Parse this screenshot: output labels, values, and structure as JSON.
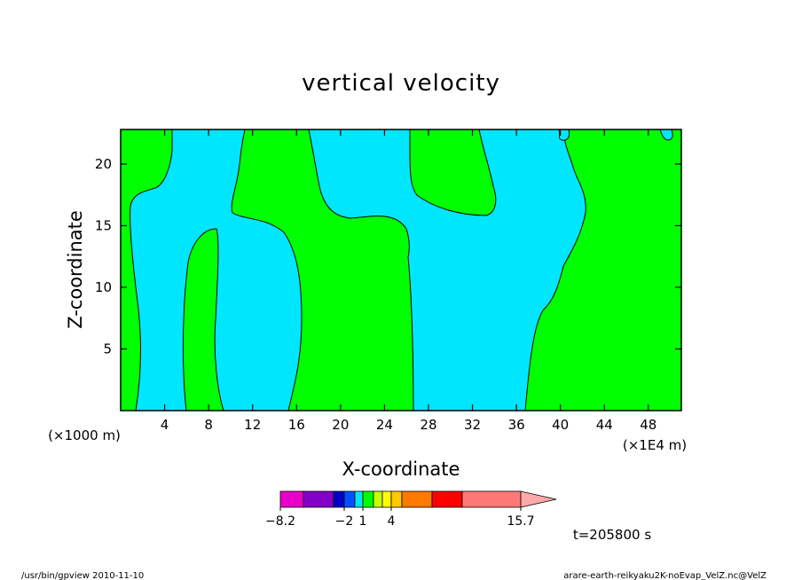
{
  "chart_data": {
    "type": "heatmap",
    "title": "vertical velocity",
    "xlabel": "X-coordinate",
    "ylabel": "Z-coordinate",
    "x_unit_left": "(×1000 m)",
    "x_unit_right": "(×1E4 m)",
    "xlim": [
      0,
      51
    ],
    "ylim": [
      0,
      22.8
    ],
    "x_ticks": [
      4,
      8,
      12,
      16,
      20,
      24,
      28,
      32,
      36,
      40,
      44,
      48
    ],
    "y_ticks": [
      5,
      10,
      15,
      20
    ],
    "regions": [
      {
        "sign": "positive",
        "color": "#00ff00"
      },
      {
        "sign": "negative",
        "color": "#00e6ff"
      }
    ],
    "colorbar": {
      "colors": [
        "#e600c8",
        "#8200c8",
        "#0000c8",
        "#0050ff",
        "#00e6ff",
        "#00ff00",
        "#c8ff00",
        "#ffff00",
        "#ffc800",
        "#ff7800",
        "#ff0000",
        "#ff7878",
        "#ffaaaa"
      ],
      "labels": [
        {
          "text": "−8.2",
          "value": -8.2
        },
        {
          "text": "−2",
          "value": -2
        },
        {
          "text": "1",
          "value": 1
        },
        {
          "text": "4",
          "value": 4
        },
        {
          "text": "15.7",
          "value": 15.7
        }
      ]
    },
    "time_label": "t=205800 s",
    "footer_left": "/usr/bin/gpview   2010-11-10",
    "footer_right": "arare-earth-reikyaku2K-noEvap_VelZ.nc@VelZ"
  }
}
